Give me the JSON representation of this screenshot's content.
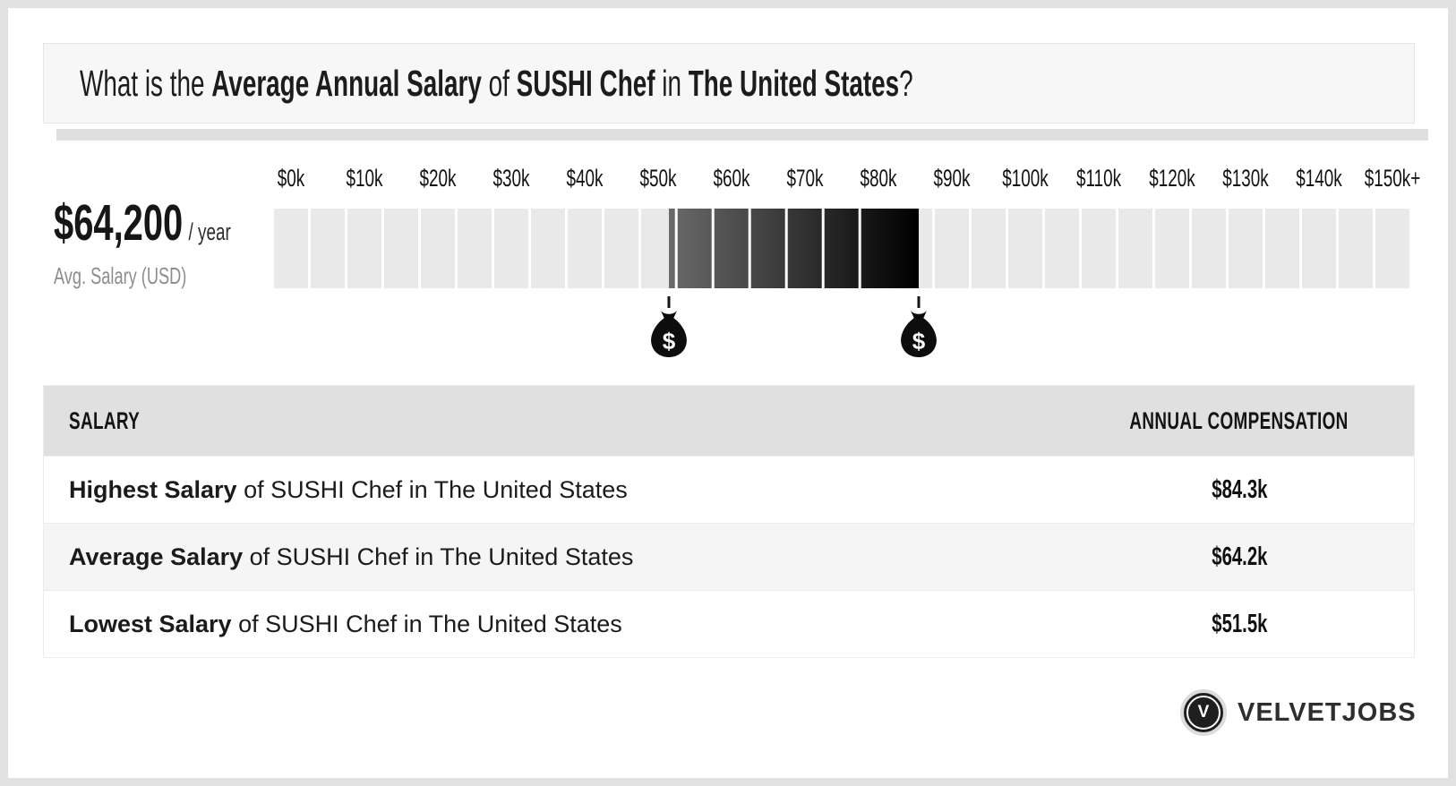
{
  "header": {
    "title_segments": [
      {
        "text": "What is the ",
        "bold": false
      },
      {
        "text": "Average Annual Salary",
        "bold": true
      },
      {
        "text": " of ",
        "bold": false
      },
      {
        "text": "SUSHI Chef",
        "bold": true
      },
      {
        "text": " in ",
        "bold": false
      },
      {
        "text": "The United States",
        "bold": true
      },
      {
        "text": "?",
        "bold": false
      }
    ]
  },
  "summary": {
    "amount": "$64,200",
    "per": "/ year",
    "caption": "Avg. Salary (USD)"
  },
  "chart_data": {
    "type": "bar",
    "title": "Salary range scale of SUSHI Chef in The United States",
    "axis_labels": [
      "$0k",
      "$10k",
      "$20k",
      "$30k",
      "$40k",
      "$50k",
      "$60k",
      "$70k",
      "$80k",
      "$90k",
      "$100k",
      "$110k",
      "$120k",
      "$130k",
      "$140k",
      "$150k+"
    ],
    "label_value_step_k": 10,
    "segment_value_step_k": 5,
    "segment_count": 31,
    "highlight_range_k": {
      "from": 51.5,
      "to": 85.5
    },
    "salaries_k": {
      "lowest": 51.5,
      "average": 64.2,
      "highest": 84.3
    },
    "track_color": "#e9e9e9",
    "gap_color": "#ffffff",
    "highlight_gradient": [
      "#6a6a6a",
      "#000000"
    ],
    "marker_icon": "money-bag",
    "legend_position": "none",
    "grid": false
  },
  "table": {
    "headers": [
      "SALARY",
      "ANNUAL COMPENSATION"
    ],
    "rows": [
      {
        "label_bold": "Highest Salary",
        "label_rest": " of SUSHI Chef in The United States",
        "value": "$84.3k"
      },
      {
        "label_bold": "Average Salary",
        "label_rest": " of SUSHI Chef in The United States",
        "value": "$64.2k"
      },
      {
        "label_bold": "Lowest Salary",
        "label_rest": " of SUSHI Chef in The United States",
        "value": "$51.5k"
      }
    ]
  },
  "footer": {
    "brand": "VELVETJOBS",
    "logo_letter": "V"
  }
}
